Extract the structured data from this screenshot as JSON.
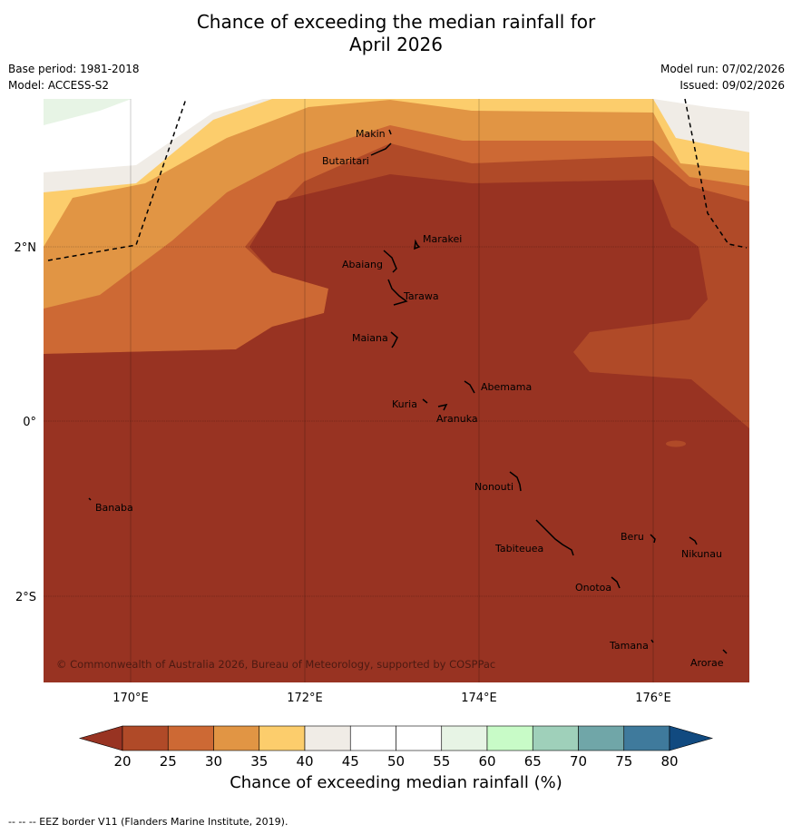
{
  "title_line1": "Chance of exceeding the median rainfall for",
  "title_line2": "April 2026",
  "meta": {
    "base_period": "Base period: 1981-2018",
    "model": "Model: ACCESS-S2",
    "model_run": "Model run: 07/02/2026",
    "issued": "Issued: 09/02/2026"
  },
  "axes": {
    "x_ticks": [
      "170°E",
      "172°E",
      "174°E",
      "176°E"
    ],
    "y_ticks": [
      "2°N",
      "0°",
      "2°S"
    ]
  },
  "places": [
    "Makin",
    "Butaritari",
    "Marakei",
    "Abaiang",
    "Tarawa",
    "Maiana",
    "Abemama",
    "Kuria",
    "Aranuka",
    "Banaba",
    "Nonouti",
    "Beru",
    "Tabiteuea",
    "Nikunau",
    "Onotoa",
    "Tamana",
    "Arorae"
  ],
  "copyright": "© Commonwealth of Australia 2026, Bureau of Meteorology, supported by COSPPac",
  "colorbar": {
    "ticks": [
      "20",
      "25",
      "30",
      "35",
      "40",
      "45",
      "50",
      "55",
      "60",
      "65",
      "70",
      "75",
      "80"
    ],
    "colors": [
      "#983322",
      "#b04a28",
      "#cd6934",
      "#e19544",
      "#fccd6c",
      "#f0ece6",
      "#ffffff",
      "#ffffff",
      "#e7f4e5",
      "#c8fbc7",
      "#9fd0ba",
      "#70a6a8",
      "#3f7a9c",
      "#114a80"
    ],
    "label": "Chance of exceeding median rainfall (%)"
  },
  "footer": "--  --  -- EEZ border V11 (Flanders Marine Institute, 2019)."
}
